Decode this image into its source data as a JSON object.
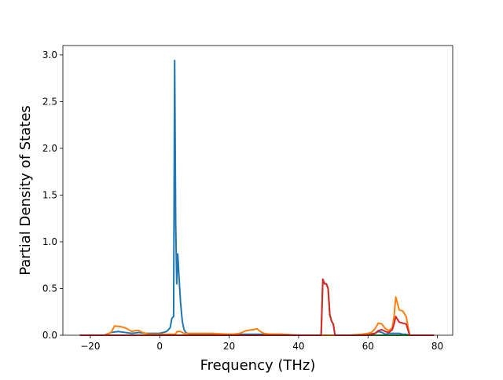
{
  "chart_data": {
    "type": "line",
    "title": "",
    "xlabel": "Frequency (THz)",
    "ylabel": "Partial Density of States",
    "xlim": [
      -27.9,
      84.4
    ],
    "ylim": [
      0,
      3.1
    ],
    "xticks": [
      -20,
      0,
      20,
      40,
      60,
      80
    ],
    "yticks": [
      0.0,
      0.5,
      1.0,
      1.5,
      2.0,
      2.5,
      3.0
    ],
    "xtick_labels": [
      "−20",
      "0",
      "20",
      "40",
      "60",
      "80"
    ],
    "ytick_labels": [
      "0.0",
      "0.5",
      "1.0",
      "1.5",
      "2.0",
      "2.5",
      "3.0"
    ],
    "grid": false,
    "legend": "none",
    "series": [
      {
        "color": "#1f77b4",
        "x": [
          -23,
          -16,
          -14,
          -12,
          -10,
          -8,
          -6,
          -4,
          -2,
          0,
          2,
          3,
          3.5,
          4,
          4.3,
          4.6,
          4.9,
          5.2,
          5.6,
          6,
          6.5,
          7,
          7.5,
          8,
          9,
          10,
          15,
          20,
          25,
          28,
          30,
          35,
          40,
          45,
          46.5,
          47,
          48,
          49,
          50,
          50.5,
          55,
          60,
          62,
          63,
          64,
          65,
          66,
          67,
          68,
          69,
          70,
          71,
          72,
          75,
          79
        ],
        "y": [
          0,
          0,
          0.03,
          0.04,
          0.03,
          0.02,
          0.03,
          0.02,
          0.02,
          0.02,
          0.04,
          0.08,
          0.18,
          0.2,
          2.94,
          1.2,
          0.55,
          0.87,
          0.6,
          0.35,
          0.15,
          0.06,
          0.03,
          0.02,
          0.01,
          0.01,
          0.01,
          0.01,
          0.01,
          0.01,
          0.01,
          0.01,
          0,
          0,
          0,
          0,
          0,
          0,
          0,
          0,
          0,
          0.01,
          0.02,
          0.04,
          0.03,
          0.01,
          0.02,
          0.02,
          0.02,
          0.02,
          0.01,
          0.01,
          0,
          0,
          0
        ]
      },
      {
        "color": "#ff7f0e",
        "x": [
          -23,
          -16,
          -14,
          -13,
          -11,
          -10,
          -8,
          -7,
          -6,
          -5,
          -4,
          -3,
          0,
          2,
          3.5,
          4.5,
          5,
          6,
          7,
          8,
          10,
          15,
          20,
          21,
          23,
          25,
          27,
          28,
          29,
          30,
          32,
          35,
          40,
          45,
          46.5,
          47,
          48,
          49,
          50,
          50.5,
          55,
          58,
          60,
          61,
          62,
          63,
          64,
          65,
          66,
          67,
          67.5,
          68,
          69,
          70,
          71,
          72,
          75,
          79
        ],
        "y": [
          0,
          0,
          0.03,
          0.1,
          0.09,
          0.08,
          0.04,
          0.05,
          0.05,
          0.03,
          0.02,
          0.01,
          0.01,
          0.01,
          0.01,
          0.01,
          0.04,
          0.04,
          0.02,
          0.02,
          0.02,
          0.02,
          0.01,
          0.01,
          0.02,
          0.05,
          0.06,
          0.07,
          0.04,
          0.02,
          0.01,
          0.01,
          0,
          0,
          0,
          0,
          0,
          0,
          0,
          0,
          0,
          0.01,
          0.02,
          0.03,
          0.07,
          0.13,
          0.12,
          0.07,
          0.05,
          0.08,
          0.2,
          0.41,
          0.27,
          0.26,
          0.2,
          0,
          0,
          0
        ]
      },
      {
        "color": "#2ca02c",
        "x": [
          -23,
          45,
          46.5,
          47,
          47.5,
          48,
          48.5,
          49,
          49.5,
          50,
          50.5,
          79
        ],
        "y": [
          0,
          0,
          0,
          0.6,
          0.55,
          0.55,
          0.5,
          0.22,
          0.15,
          0.12,
          0,
          0
        ]
      },
      {
        "color": "#d62728",
        "x": [
          -23,
          45,
          46.5,
          47,
          47.5,
          48,
          48.5,
          49,
          49.5,
          50,
          50.5,
          60,
          62,
          63,
          64,
          65,
          66,
          67,
          67.5,
          68,
          69,
          70,
          71,
          72,
          79
        ],
        "y": [
          0,
          0,
          0,
          0.6,
          0.55,
          0.55,
          0.5,
          0.22,
          0.15,
          0.12,
          0,
          0,
          0.02,
          0.05,
          0.06,
          0.04,
          0.03,
          0.06,
          0.12,
          0.2,
          0.14,
          0.13,
          0.12,
          0,
          0
        ]
      }
    ]
  }
}
